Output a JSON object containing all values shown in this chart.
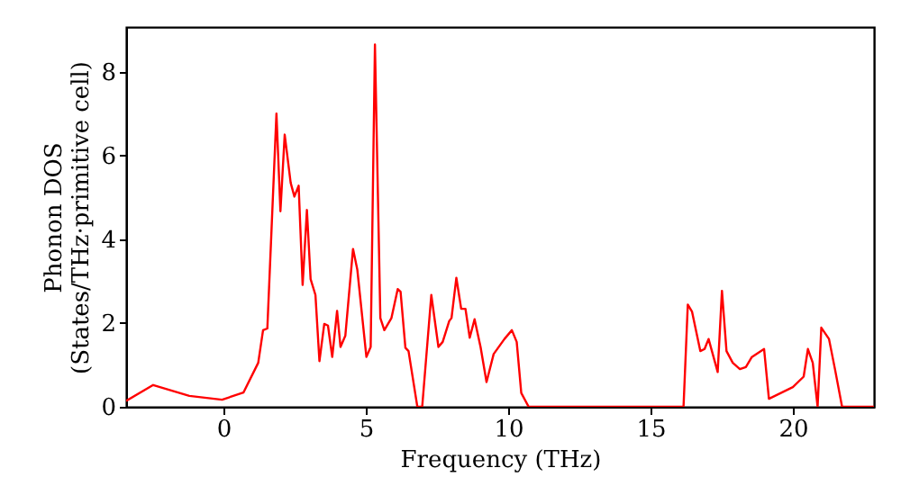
{
  "chart_data": {
    "type": "line",
    "xlabel": "Frequency (THz)",
    "ylabel": "Phonon DOS\n(States/THz·primitive cell)",
    "x": [
      -3.42,
      -2.47,
      -1.2,
      -0.05,
      0.7,
      1.22,
      1.39,
      1.54,
      1.86,
      2.0,
      2.15,
      2.36,
      2.49,
      2.64,
      2.78,
      2.93,
      3.06,
      3.23,
      3.37,
      3.54,
      3.67,
      3.82,
      3.99,
      4.11,
      4.28,
      4.55,
      4.7,
      5.02,
      5.17,
      5.32,
      5.51,
      5.65,
      5.9,
      6.12,
      6.22,
      6.39,
      6.5,
      6.81,
      6.98,
      7.3,
      7.55,
      7.7,
      7.93,
      8.01,
      8.18,
      8.35,
      8.5,
      8.65,
      8.82,
      9.03,
      9.24,
      9.49,
      9.87,
      10.13,
      10.3,
      10.46,
      10.72,
      16.16,
      16.31,
      16.46,
      16.75,
      16.9,
      17.04,
      17.36,
      17.51,
      17.67,
      17.89,
      18.14,
      18.35,
      18.56,
      18.99,
      19.16,
      20.0,
      20.38,
      20.53,
      20.7,
      20.87,
      21.0,
      21.27,
      21.48,
      21.73,
      22.85
    ],
    "series": [
      {
        "color": "#ff0000",
        "values": [
          0.14,
          0.52,
          0.26,
          0.17,
          0.34,
          1.05,
          1.83,
          1.87,
          7.0,
          4.67,
          6.5,
          5.35,
          5.02,
          5.28,
          2.91,
          4.7,
          3.05,
          2.67,
          1.09,
          1.98,
          1.94,
          1.19,
          2.29,
          1.43,
          1.7,
          3.77,
          3.28,
          1.19,
          1.43,
          8.65,
          2.12,
          1.83,
          2.12,
          2.81,
          2.75,
          1.41,
          1.33,
          0,
          0,
          2.67,
          1.43,
          1.55,
          2.05,
          2.12,
          3.08,
          2.34,
          2.34,
          1.65,
          2.09,
          1.43,
          0.59,
          1.26,
          1.62,
          1.83,
          1.55,
          0.33,
          0,
          0,
          2.44,
          2.27,
          1.33,
          1.38,
          1.62,
          0.83,
          2.77,
          1.33,
          1.05,
          0.9,
          0.95,
          1.19,
          1.38,
          0.19,
          0.47,
          0.72,
          1.38,
          1.05,
          0,
          1.89,
          1.62,
          0.9,
          0,
          0
        ]
      }
    ],
    "xlim": [
      -3.42,
      22.85
    ],
    "xticks": [
      0,
      5,
      10,
      15,
      20
    ],
    "ylim": [
      0,
      9.07
    ],
    "yticks": [
      0,
      2,
      4,
      6,
      8
    ],
    "grid": false,
    "line_style": "solid",
    "marker": "none"
  }
}
